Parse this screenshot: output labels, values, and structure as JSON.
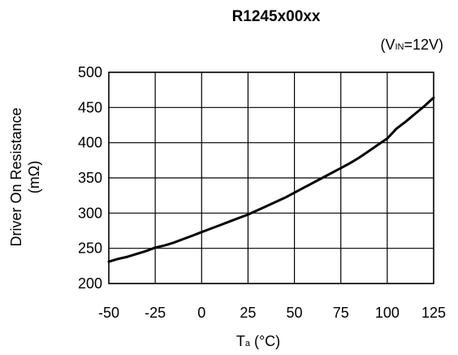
{
  "chart_data": {
    "type": "line",
    "title": "R1245x00xx",
    "condition": {
      "main": "(V",
      "sub": "IN",
      "rest": "=12V)"
    },
    "xlabel": {
      "main": "T",
      "sub": "a",
      "rest": " (°C)"
    },
    "ylabel": {
      "line1": "Driver On Resistance",
      "line2": "(mΩ)"
    },
    "xlim": [
      -50,
      125
    ],
    "ylim": [
      200,
      500
    ],
    "xticks": [
      -50,
      -25,
      0,
      25,
      50,
      75,
      100,
      125
    ],
    "yticks": [
      200,
      250,
      300,
      350,
      400,
      450,
      500
    ],
    "grid": true,
    "series": [
      {
        "x": [
          -50,
          -45,
          -40,
          -35,
          -30,
          -25,
          -20,
          -15,
          -10,
          -5,
          0,
          5,
          10,
          15,
          20,
          25,
          30,
          35,
          40,
          45,
          50,
          55,
          60,
          65,
          70,
          75,
          80,
          85,
          90,
          95,
          100,
          105,
          110,
          115,
          120,
          125
        ],
        "y": [
          231,
          235,
          238,
          242,
          246,
          251,
          254,
          258,
          263,
          268,
          273,
          278,
          283,
          288,
          293,
          298,
          304,
          310,
          316,
          322,
          329,
          336,
          343,
          350,
          357,
          364,
          371,
          379,
          388,
          397,
          406,
          420,
          430,
          441,
          452,
          464
        ]
      }
    ]
  }
}
